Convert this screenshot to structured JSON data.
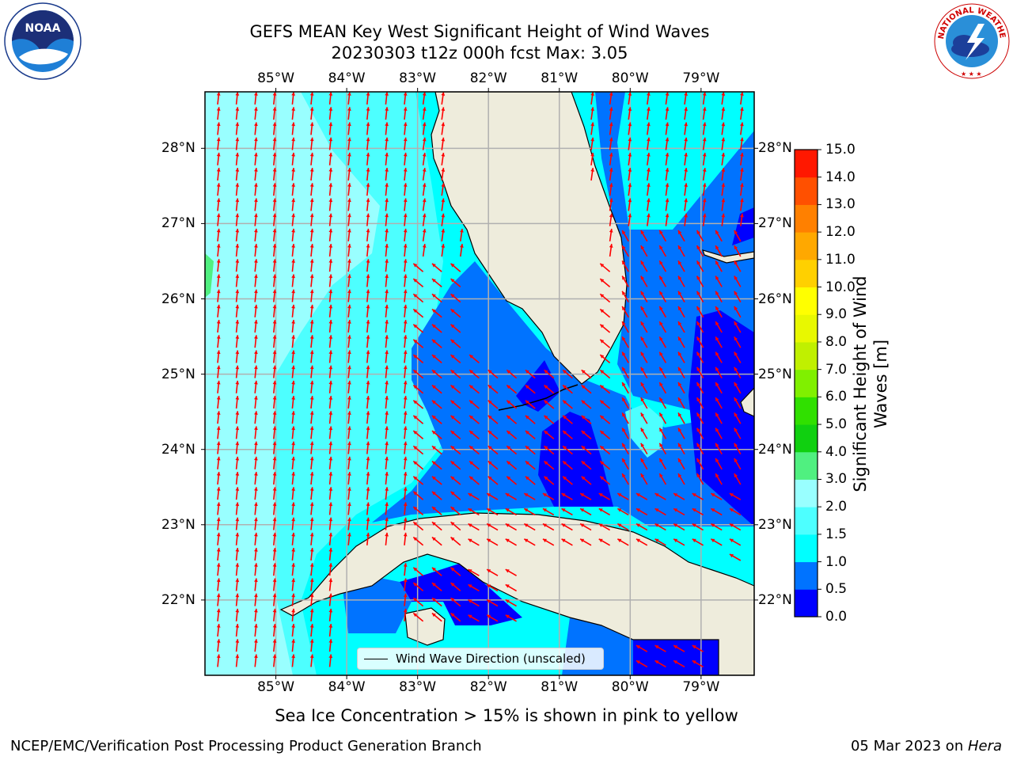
{
  "title": {
    "line1": "GEFS MEAN Key West Significant Height of Wind Waves",
    "line2": "20230303 t12z 000h fcst   Max: 3.05"
  },
  "logos": {
    "left": {
      "name": "noaa-logo",
      "text": "NOAA"
    },
    "right": {
      "name": "nws-logo",
      "text": "NATIONAL WEATHER SERVICE"
    }
  },
  "map": {
    "lon_ticks": [
      "85°W",
      "84°W",
      "83°W",
      "82°W",
      "81°W",
      "80°W",
      "79°W"
    ],
    "lat_ticks": [
      "28°N",
      "27°N",
      "26°N",
      "25°N",
      "24°N",
      "23°N",
      "22°N"
    ],
    "lon_range": [
      -86.0,
      -78.25
    ],
    "lat_range": [
      21.0,
      28.75
    ],
    "ocean_base_color": "#00ffff",
    "land_color": "#eeecdc",
    "arrow_color": "#ff0000",
    "grid": true
  },
  "legend": {
    "label": "Wind Wave Direction (unscaled)"
  },
  "colorbar": {
    "title": "Significant Height of Wind Waves [m]",
    "title_line1": "Significant Height of Wind",
    "title_line2": "Waves [m]",
    "levels": [
      "0.0",
      "0.5",
      "1.0",
      "1.5",
      "2.0",
      "3.0",
      "4.0",
      "5.0",
      "6.0",
      "7.0",
      "8.0",
      "9.0",
      "10.0",
      "11.0",
      "12.0",
      "13.0",
      "14.0",
      "15.0"
    ],
    "colors": [
      "#0000ff",
      "#0073ff",
      "#00ffff",
      "#4dffff",
      "#99ffff",
      "#50f080",
      "#10d010",
      "#30e000",
      "#80f000",
      "#c0f000",
      "#e8f800",
      "#ffff00",
      "#ffd000",
      "#ffa800",
      "#ff8000",
      "#ff5000",
      "#ff1800"
    ]
  },
  "note": "Sea Ice Concentration > 15% is shown in pink to yellow",
  "footer": {
    "left": "NCEP/EMC/Verification Post Processing Product Generation Branch",
    "date": "05 Mar 2023",
    "on": " on ",
    "machine": "Hera"
  }
}
